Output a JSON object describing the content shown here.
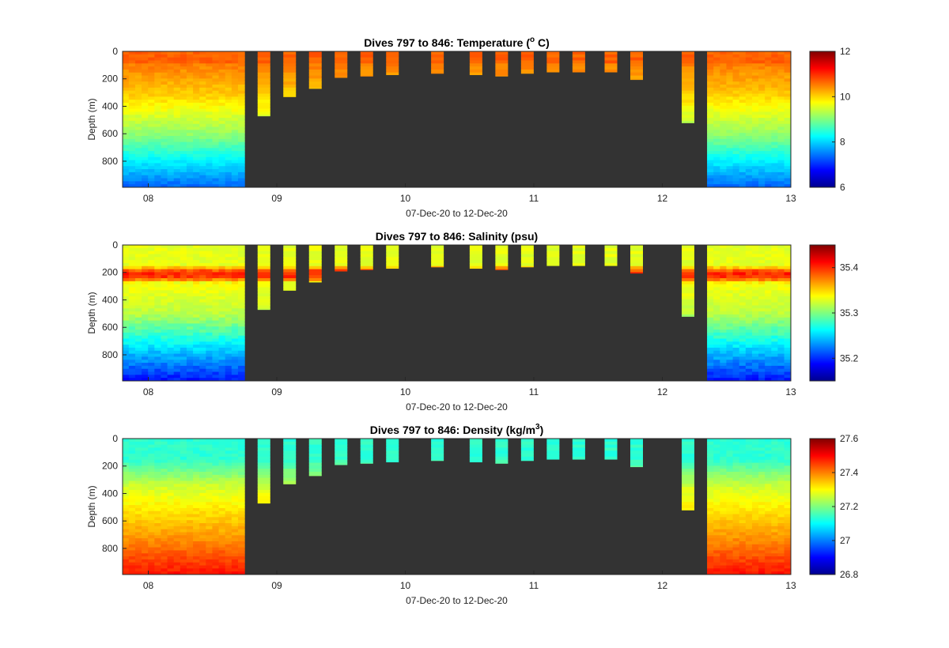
{
  "figure": {
    "background_color": "#ffffff",
    "no_data_color": "#333333"
  },
  "chart_data": [
    {
      "type": "heatmap",
      "key": "temp",
      "title_main": "Dives 797 to 846: Temperature (",
      "title_sup": "o",
      "title_end": " C)",
      "xlabel": "07-Dec-20 to 12-Dec-20",
      "ylabel": "Depth (m)",
      "x_ticks": [
        "08",
        "09",
        "10",
        "11",
        "12",
        "13"
      ],
      "y_ticks": [
        "0",
        "200",
        "400",
        "600",
        "800"
      ],
      "ylim": [
        0,
        990
      ],
      "colorbar": {
        "ticks": [
          "6",
          "8",
          "10",
          "12"
        ],
        "range": [
          6,
          12
        ]
      },
      "profile_days": [
        7.8,
        7.85,
        7.9,
        7.95,
        8.0,
        8.05,
        8.1,
        8.15,
        8.2,
        8.25,
        8.3,
        8.35,
        8.4,
        8.45,
        8.5,
        8.55,
        8.6,
        8.65,
        8.7
      ],
      "shallow_dives": [
        {
          "day": 8.9,
          "depth": 470
        },
        {
          "day": 9.1,
          "depth": 330
        },
        {
          "day": 9.3,
          "depth": 270
        },
        {
          "day": 9.5,
          "depth": 190
        },
        {
          "day": 9.7,
          "depth": 180
        },
        {
          "day": 9.9,
          "depth": 170
        },
        {
          "day": 10.25,
          "depth": 160
        },
        {
          "day": 10.55,
          "depth": 170
        },
        {
          "day": 10.75,
          "depth": 180
        },
        {
          "day": 10.95,
          "depth": 160
        },
        {
          "day": 11.15,
          "depth": 150
        },
        {
          "day": 11.35,
          "depth": 150
        },
        {
          "day": 11.6,
          "depth": 150
        },
        {
          "day": 11.8,
          "depth": 205
        },
        {
          "day": 12.2,
          "depth": 520
        }
      ],
      "late_profile_days": [
        12.4,
        12.45,
        12.5,
        12.55,
        12.6,
        12.65,
        12.7,
        12.75,
        12.8,
        12.85,
        12.9,
        12.95,
        13.0
      ]
    },
    {
      "type": "heatmap",
      "key": "sal",
      "title_main": "Dives 797 to 846: Salinity (psu)",
      "title_sup": "",
      "title_end": "",
      "xlabel": "07-Dec-20 to 12-Dec-20",
      "ylabel": "Depth (m)",
      "x_ticks": [
        "08",
        "09",
        "10",
        "11",
        "12",
        "13"
      ],
      "y_ticks": [
        "0",
        "200",
        "400",
        "600",
        "800"
      ],
      "ylim": [
        0,
        990
      ],
      "colorbar": {
        "ticks": [
          "35.2",
          "35.3",
          "35.4"
        ],
        "range": [
          35.15,
          35.45
        ]
      },
      "profile_days": [
        7.8,
        7.85,
        7.9,
        7.95,
        8.0,
        8.05,
        8.1,
        8.15,
        8.2,
        8.25,
        8.3,
        8.35,
        8.4,
        8.45,
        8.5,
        8.55,
        8.6,
        8.65,
        8.7
      ],
      "shallow_dives": [
        {
          "day": 8.9,
          "depth": 470
        },
        {
          "day": 9.1,
          "depth": 330
        },
        {
          "day": 9.3,
          "depth": 270
        },
        {
          "day": 9.5,
          "depth": 190
        },
        {
          "day": 9.7,
          "depth": 180
        },
        {
          "day": 9.9,
          "depth": 170
        },
        {
          "day": 10.25,
          "depth": 160
        },
        {
          "day": 10.55,
          "depth": 170
        },
        {
          "day": 10.75,
          "depth": 180
        },
        {
          "day": 10.95,
          "depth": 160
        },
        {
          "day": 11.15,
          "depth": 150
        },
        {
          "day": 11.35,
          "depth": 150
        },
        {
          "day": 11.6,
          "depth": 150
        },
        {
          "day": 11.8,
          "depth": 205
        },
        {
          "day": 12.2,
          "depth": 520
        }
      ],
      "late_profile_days": [
        12.4,
        12.45,
        12.5,
        12.55,
        12.6,
        12.65,
        12.7,
        12.75,
        12.8,
        12.85,
        12.9,
        12.95,
        13.0
      ]
    },
    {
      "type": "heatmap",
      "key": "dens",
      "title_main": "Dives 797 to 846: Density (kg/m",
      "title_sup": "3",
      "title_end": ")",
      "xlabel": "07-Dec-20 to 12-Dec-20",
      "ylabel": "Depth (m)",
      "x_ticks": [
        "08",
        "09",
        "10",
        "11",
        "12",
        "13"
      ],
      "y_ticks": [
        "0",
        "200",
        "400",
        "600",
        "800"
      ],
      "ylim": [
        0,
        990
      ],
      "colorbar": {
        "ticks": [
          "26.8",
          "27",
          "27.2",
          "27.4",
          "27.6"
        ],
        "range": [
          26.8,
          27.6
        ]
      },
      "profile_days": [
        7.8,
        7.85,
        7.9,
        7.95,
        8.0,
        8.05,
        8.1,
        8.15,
        8.2,
        8.25,
        8.3,
        8.35,
        8.4,
        8.45,
        8.5,
        8.55,
        8.6,
        8.65,
        8.7
      ],
      "shallow_dives": [
        {
          "day": 8.9,
          "depth": 470
        },
        {
          "day": 9.1,
          "depth": 330
        },
        {
          "day": 9.3,
          "depth": 270
        },
        {
          "day": 9.5,
          "depth": 190
        },
        {
          "day": 9.7,
          "depth": 180
        },
        {
          "day": 9.9,
          "depth": 170
        },
        {
          "day": 10.25,
          "depth": 160
        },
        {
          "day": 10.55,
          "depth": 170
        },
        {
          "day": 10.75,
          "depth": 180
        },
        {
          "day": 10.95,
          "depth": 160
        },
        {
          "day": 11.15,
          "depth": 150
        },
        {
          "day": 11.35,
          "depth": 150
        },
        {
          "day": 11.6,
          "depth": 150
        },
        {
          "day": 11.8,
          "depth": 205
        },
        {
          "day": 12.2,
          "depth": 520
        }
      ],
      "late_profile_days": [
        12.4,
        12.45,
        12.5,
        12.55,
        12.6,
        12.65,
        12.7,
        12.75,
        12.8,
        12.85,
        12.9,
        12.95,
        13.0
      ]
    }
  ]
}
